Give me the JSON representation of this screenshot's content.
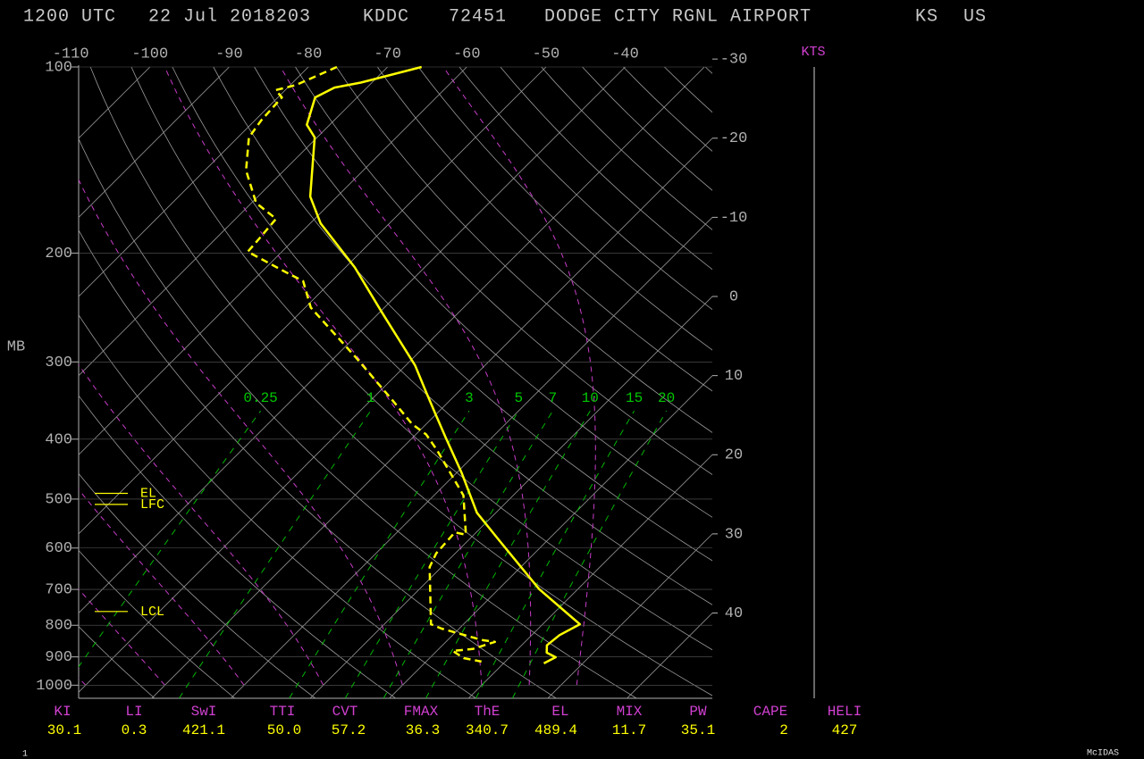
{
  "header": {
    "time": "1200 UTC",
    "date": "22 Jul 2018203",
    "station": "KDDC",
    "wmo": "72451",
    "name": "DODGE CITY RGNL AIRPORT",
    "state": "KS",
    "country": "US"
  },
  "chart_data": {
    "type": "skewt",
    "y_label": "MB",
    "log_y": true,
    "ylim": [
      100,
      1050
    ],
    "yticks": [
      100,
      200,
      300,
      400,
      500,
      600,
      700,
      800,
      900,
      1000
    ],
    "xlim": [
      -109,
      -29
    ],
    "xticks": [
      -110,
      -100,
      -90,
      -80,
      -70,
      -60,
      -50,
      -40
    ],
    "right_ticks": [
      -30,
      -20,
      -10,
      0,
      10,
      20,
      30,
      40
    ],
    "wind_unit": "KTS",
    "profiles": [
      {
        "color": "#ffff00",
        "dashed": false,
        "pressure": [
          100,
          106,
          108,
          112,
          124,
          130,
          162,
          179,
          211,
          249,
          304,
          336,
          365,
          397,
          454,
          526,
          582,
          699,
          797,
          830,
          862,
          886,
          901,
          922
        ],
        "values": [
          -65.7,
          -71.4,
          -74.1,
          -75.3,
          -72.9,
          -70.3,
          -63.4,
          -58.7,
          -48.8,
          -39.8,
          -28.8,
          -24.0,
          -20.0,
          -15.9,
          -9.3,
          -2.4,
          3.8,
          15.1,
          24.7,
          23.5,
          23.2,
          24.1,
          25.8,
          25.1
        ]
      },
      {
        "color": "#ffff00",
        "dashed": true,
        "pressure": [
          100,
          107,
          109,
          112,
          122,
          130,
          147,
          166,
          176,
          190,
          199,
          215,
          222,
          245,
          295,
          347,
          378,
          393,
          417,
          493,
          571,
          566,
          612,
          644,
          797,
          810,
          845,
          851,
          874,
          880,
          904,
          916
        ],
        "values": [
          -76.4,
          -79.3,
          -81.2,
          -79.5,
          -79.2,
          -78.6,
          -74.8,
          -69.4,
          -64.9,
          -64.5,
          -64.3,
          -56.8,
          -53.6,
          -49.3,
          -37.3,
          -27.1,
          -21.8,
          -18.7,
          -15.3,
          -6.3,
          -1.0,
          -2.7,
          -2.4,
          -1.5,
          5.9,
          7.8,
          14.3,
          16.2,
          14.3,
          12.0,
          14.3,
          17.0
        ]
      }
    ],
    "mixing_ratio": {
      "color": "#00c800",
      "values": [
        0.25,
        1,
        3,
        5,
        7,
        10,
        15,
        20
      ]
    },
    "levels": [
      {
        "label": "EL",
        "pressure": 489.4
      },
      {
        "label": "LFC",
        "pressure": 510
      },
      {
        "label": "LCL",
        "pressure": 760
      }
    ]
  },
  "indices": [
    {
      "name": "KI",
      "value": "30.1"
    },
    {
      "name": "LI",
      "value": "0.3"
    },
    {
      "name": "SwI",
      "value": "421.1"
    },
    {
      "name": "TTI",
      "value": "50.0"
    },
    {
      "name": "CVT",
      "value": "57.2"
    },
    {
      "name": "FMAX",
      "value": "36.3"
    },
    {
      "name": "ThE",
      "value": "340.7"
    },
    {
      "name": "EL",
      "value": "489.4"
    },
    {
      "name": "MIX",
      "value": "11.7"
    },
    {
      "name": "PW",
      "value": "35.1"
    },
    {
      "name": "CAPE",
      "value": "2"
    },
    {
      "name": "HELI",
      "value": "427"
    }
  ],
  "footer": {
    "page": "1",
    "brand": "McIDAS"
  }
}
